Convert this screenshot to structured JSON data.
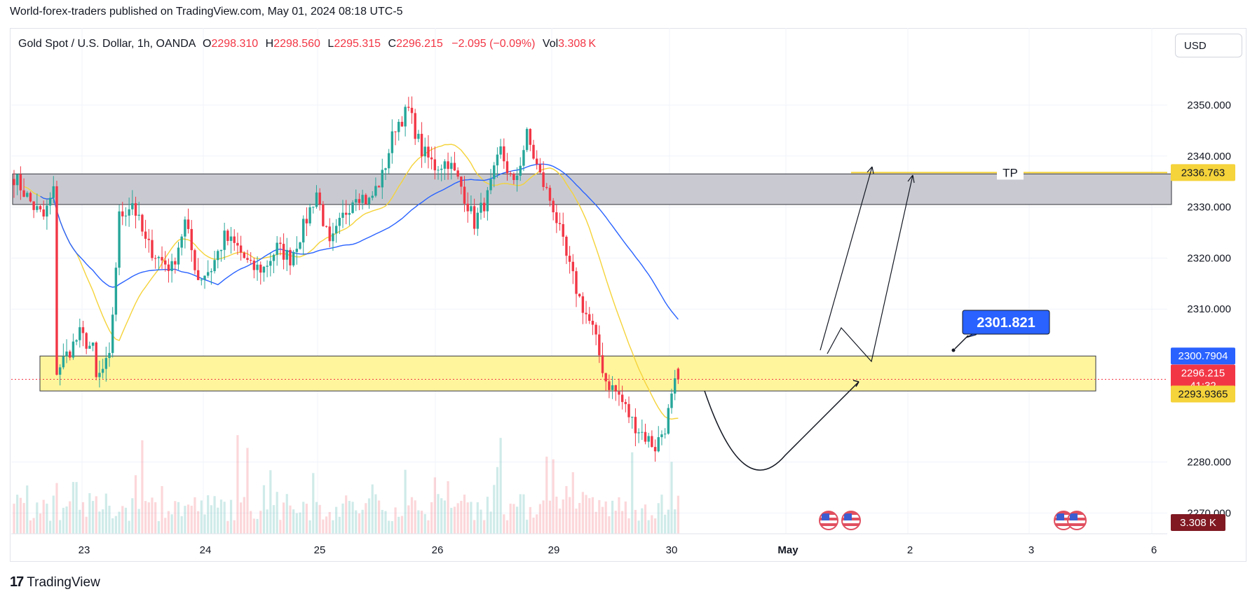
{
  "published": "World-forex-traders published on TradingView.com, May 01, 2024 08:18 UTC-5",
  "brand": {
    "logo": "17",
    "name": "TradingView"
  },
  "header": {
    "symbol": "Gold Spot / U.S. Dollar, 1h, OANDA",
    "o_label": "O",
    "o": "2298.310",
    "h_label": "H",
    "h": "2298.560",
    "l_label": "L",
    "l": "2295.315",
    "c_label": "C",
    "c": "2296.215",
    "change": "−2.095 (−0.09%)",
    "vol_label": "Vol",
    "vol": "3.308 K"
  },
  "currency": "USD",
  "colors": {
    "up": "#26a69a",
    "down": "#f23645",
    "ma_fast": "#f5d33a",
    "ma_slow": "#2962ff",
    "zone": "#fff176",
    "resistance": "#a9aab5"
  },
  "chart_data": {
    "type": "candlestick",
    "symbol": "Gold Spot / U.S. Dollar",
    "interval": "1h",
    "ylim": [
      2266,
      2364
    ],
    "y_ticks": [
      "2350.000",
      "2340.000",
      "2330.000",
      "2320.000",
      "2310.000",
      "2280.000",
      "2270.000"
    ],
    "x_ticks": [
      "23",
      "24",
      "25",
      "26",
      "29",
      "30",
      "May",
      "2",
      "3",
      "6"
    ],
    "anchors": [
      [
        0,
        2336
      ],
      [
        6,
        2330
      ],
      [
        9,
        2328
      ],
      [
        12,
        2333
      ],
      [
        13,
        2298
      ],
      [
        15,
        2300
      ],
      [
        20,
        2305
      ],
      [
        24,
        2302
      ],
      [
        25,
        2296
      ],
      [
        29,
        2300
      ],
      [
        32,
        2328
      ],
      [
        36,
        2331
      ],
      [
        40,
        2323
      ],
      [
        44,
        2320
      ],
      [
        48,
        2318
      ],
      [
        52,
        2327
      ],
      [
        56,
        2316
      ],
      [
        60,
        2318
      ],
      [
        64,
        2324
      ],
      [
        68,
        2322
      ],
      [
        72,
        2318
      ],
      [
        76,
        2318
      ],
      [
        80,
        2322
      ],
      [
        84,
        2320
      ],
      [
        88,
        2326
      ],
      [
        92,
        2333
      ],
      [
        96,
        2322
      ],
      [
        100,
        2328
      ],
      [
        104,
        2333
      ],
      [
        108,
        2331
      ],
      [
        112,
        2336
      ],
      [
        116,
        2346
      ],
      [
        120,
        2349
      ],
      [
        124,
        2341
      ],
      [
        128,
        2338
      ],
      [
        132,
        2339
      ],
      [
        136,
        2334
      ],
      [
        140,
        2327
      ],
      [
        144,
        2332
      ],
      [
        148,
        2341
      ],
      [
        152,
        2334
      ],
      [
        156,
        2344
      ],
      [
        160,
        2336
      ],
      [
        164,
        2330
      ],
      [
        168,
        2320
      ],
      [
        172,
        2312
      ],
      [
        176,
        2306
      ],
      [
        180,
        2296
      ],
      [
        184,
        2293
      ],
      [
        188,
        2288
      ],
      [
        192,
        2285
      ],
      [
        195,
        2283
      ],
      [
        198,
        2287
      ],
      [
        201,
        2295
      ],
      [
        202,
        2296.2
      ]
    ],
    "volume_max": "3.308 K",
    "levels": [
      {
        "name": "TP",
        "value": 2336.763,
        "label": "2336.763",
        "color": "#f5d33a"
      },
      {
        "name": "zone-top",
        "value": 2300.7904,
        "label": "2300.7904",
        "color": "#2962ff"
      },
      {
        "name": "last-price",
        "value": 2296.215,
        "label": "2296.215",
        "countdown": "41:32",
        "color": "#f23645"
      },
      {
        "name": "zone-bottom",
        "value": 2293.9365,
        "label": "2293.9365",
        "color": "#f5d33a"
      }
    ],
    "resistance_zone": [
      2330.5,
      2336.5
    ],
    "support_zone": [
      2293.9365,
      2300.7904
    ],
    "callout": {
      "label": "2301.821",
      "value": 2301.821
    },
    "tp_label": "TP",
    "volume_label": "3.308 K"
  }
}
